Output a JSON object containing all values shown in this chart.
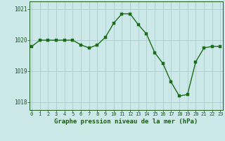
{
  "x": [
    0,
    1,
    2,
    3,
    4,
    5,
    6,
    7,
    8,
    9,
    10,
    11,
    12,
    13,
    14,
    15,
    16,
    17,
    18,
    19,
    20,
    21,
    22,
    23
  ],
  "y": [
    1019.8,
    1020.0,
    1020.0,
    1020.0,
    1020.0,
    1020.0,
    1019.85,
    1019.75,
    1019.85,
    1020.1,
    1020.55,
    1020.85,
    1020.85,
    1020.5,
    1020.2,
    1019.6,
    1019.25,
    1018.65,
    1018.2,
    1018.25,
    1019.3,
    1019.75,
    1019.8,
    1019.8
  ],
  "line_color": "#1a6e1a",
  "marker_color": "#1a6e1a",
  "bg_color": "#cde8e8",
  "grid_color": "#b0d0d0",
  "xlabel": "Graphe pression niveau de la mer (hPa)",
  "xlabel_color": "#1a5c1a",
  "tick_color": "#1a5c1a",
  "ylim": [
    1017.75,
    1021.25
  ],
  "yticks": [
    1018,
    1019,
    1020,
    1021
  ],
  "xticks": [
    0,
    1,
    2,
    3,
    4,
    5,
    6,
    7,
    8,
    9,
    10,
    11,
    12,
    13,
    14,
    15,
    16,
    17,
    18,
    19,
    20,
    21,
    22,
    23
  ],
  "marker_size": 2.8,
  "line_width": 1.0
}
